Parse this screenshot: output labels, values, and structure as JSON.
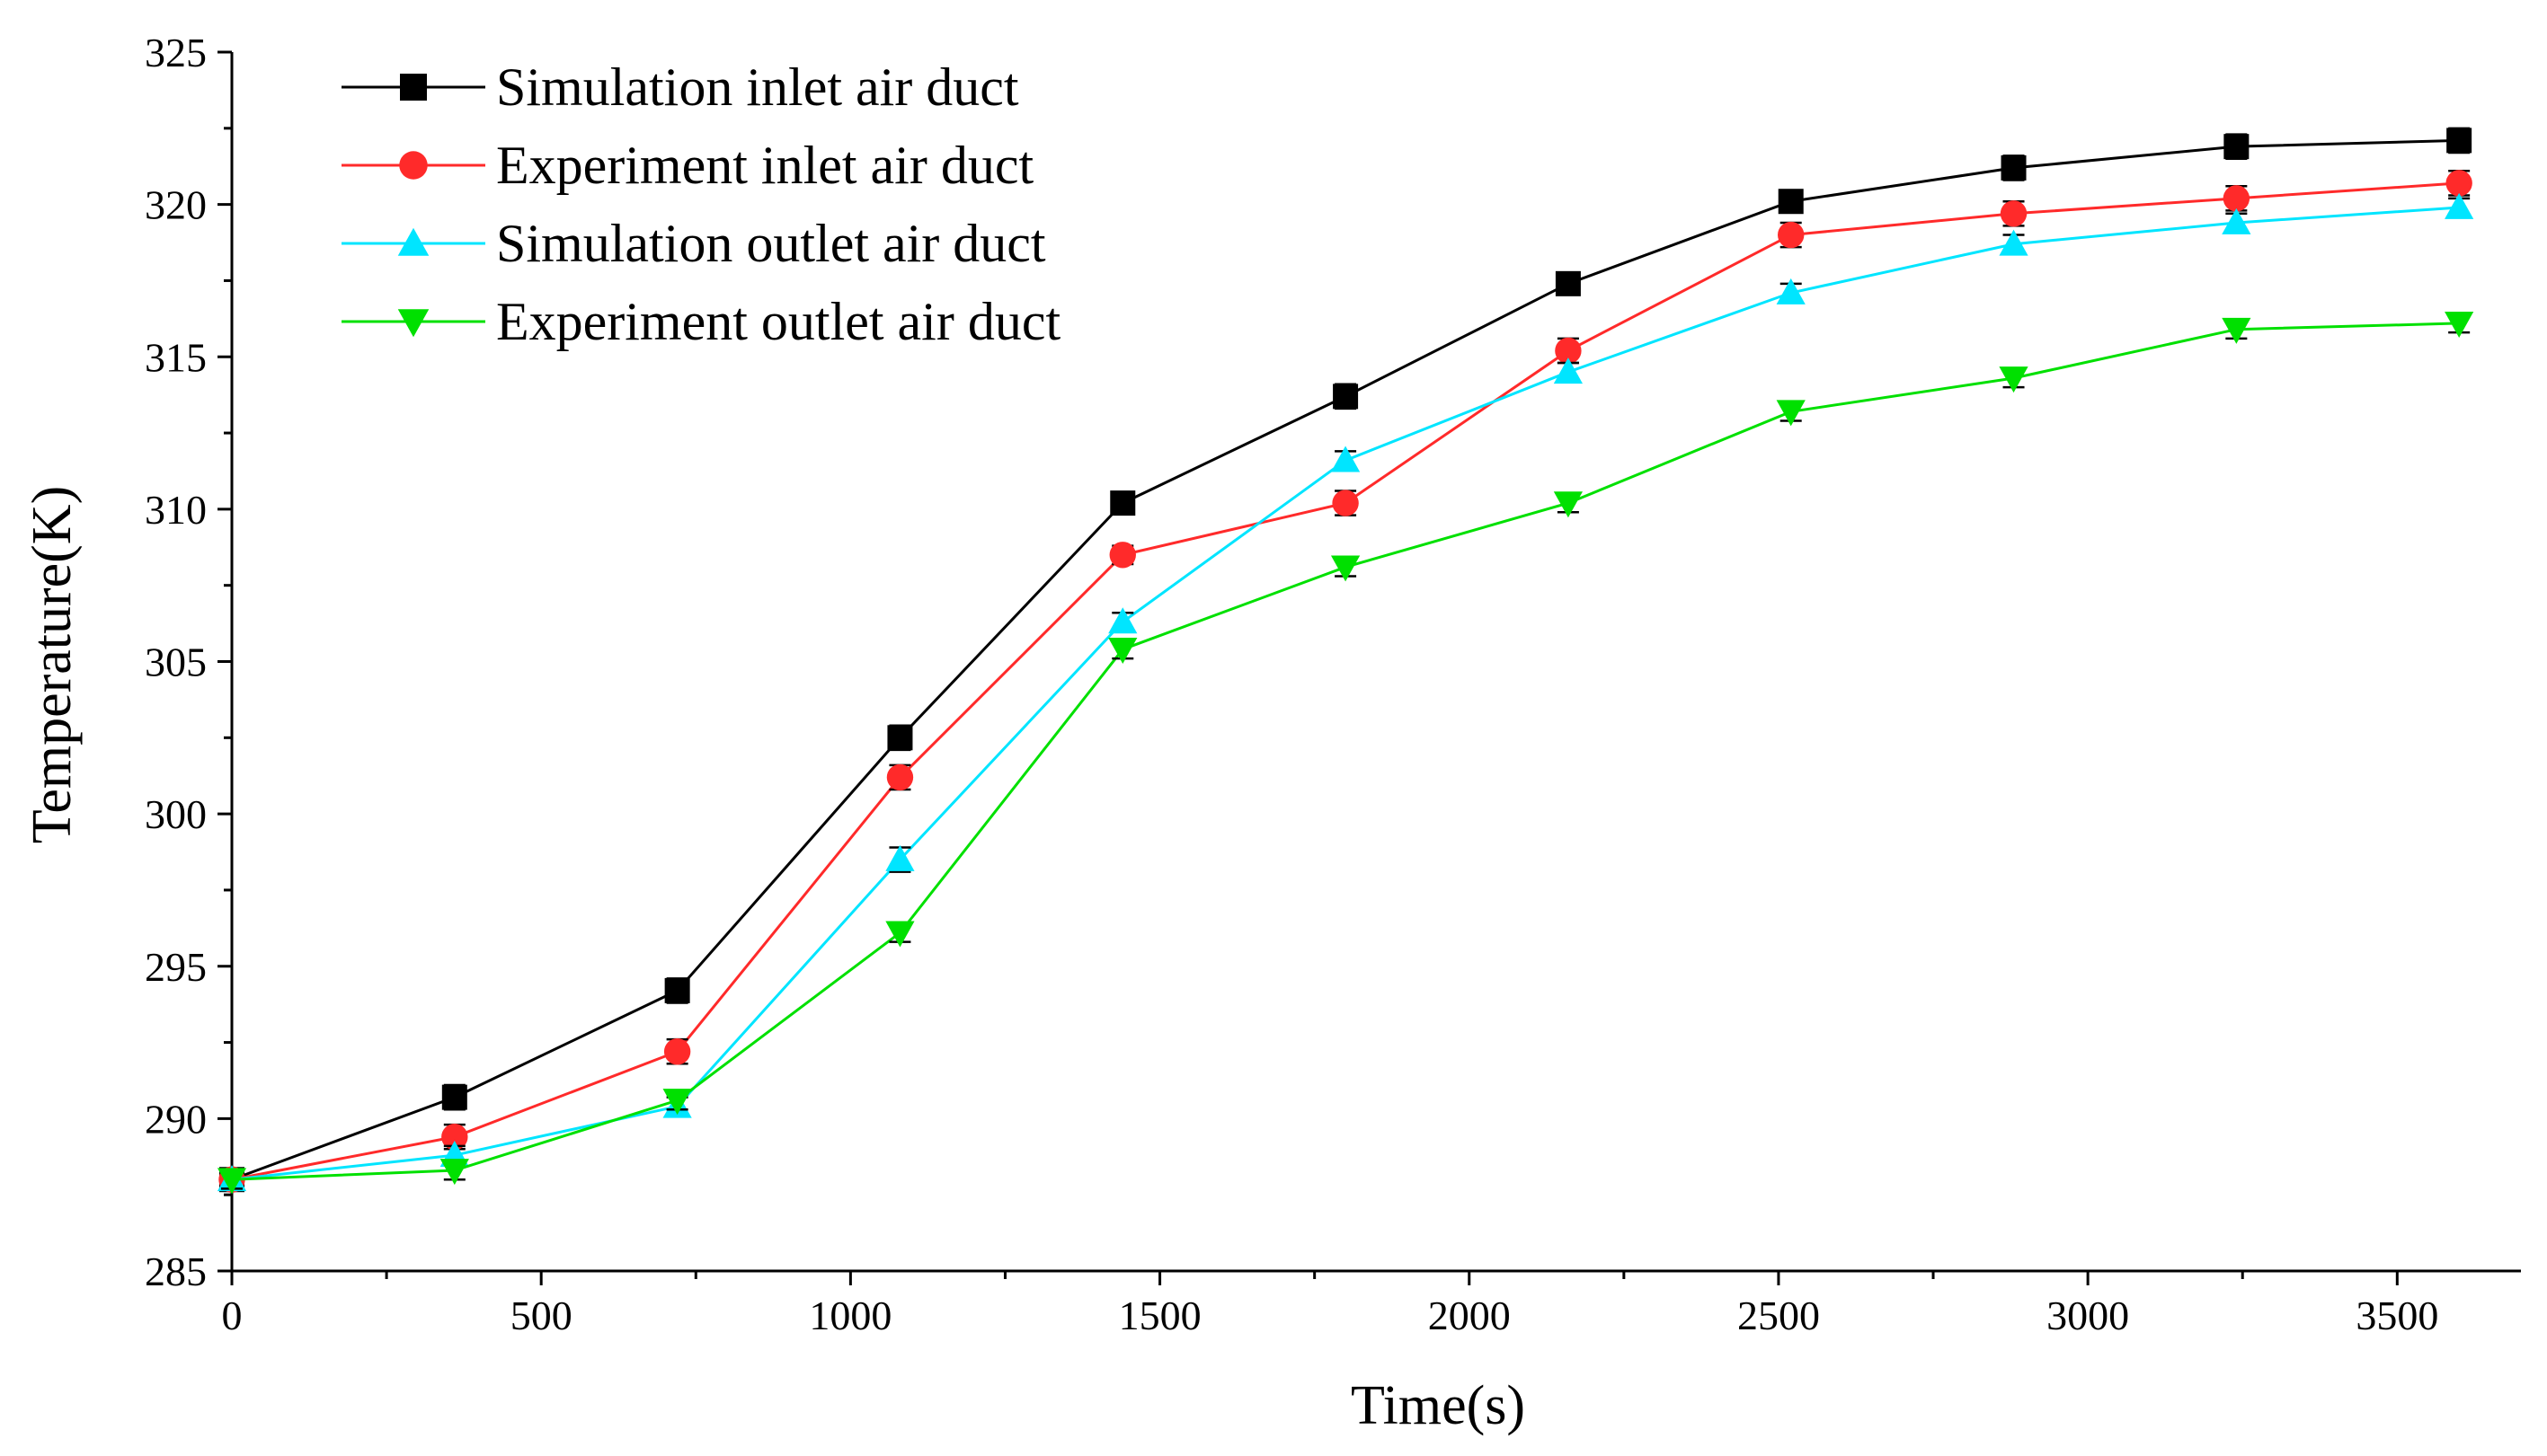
{
  "chart_data": {
    "type": "line",
    "title": "",
    "xlabel": "Time(s)",
    "ylabel": "Temperature(K)",
    "xlim": [
      0,
      3700
    ],
    "ylim": [
      285,
      325
    ],
    "x_ticks": [
      0,
      500,
      1000,
      1500,
      2000,
      2500,
      3000,
      3500
    ],
    "y_ticks": [
      285,
      290,
      295,
      300,
      305,
      310,
      315,
      320,
      325
    ],
    "x_tick_labels": [
      "0",
      "500",
      "1000",
      "1500",
      "2000",
      "2500",
      "3000",
      "3500"
    ],
    "y_tick_labels": [
      "285",
      "290",
      "295",
      "300",
      "305",
      "310",
      "315",
      "320",
      "325"
    ],
    "legend_position": "top-left",
    "x": [
      0,
      360,
      720,
      1080,
      1440,
      1800,
      2160,
      2520,
      2880,
      3240,
      3600
    ],
    "series": [
      {
        "name": "Simulation inlet air duct",
        "color": "#000000",
        "marker": "square",
        "values": [
          288.0,
          290.7,
          294.2,
          302.5,
          310.2,
          313.7,
          317.4,
          320.1,
          321.2,
          321.9,
          322.1
        ],
        "errors": [
          0.3,
          0.4,
          0.4,
          0.4,
          0.3,
          0.4,
          0.3,
          0.3,
          0.4,
          0.4,
          0.4
        ]
      },
      {
        "name": "Experiment inlet air duct",
        "color": "#ff2a2a",
        "marker": "circle",
        "values": [
          288.0,
          289.4,
          292.2,
          301.2,
          308.5,
          310.2,
          315.2,
          319.0,
          319.7,
          320.2,
          320.7
        ],
        "errors": [
          0.3,
          0.4,
          0.4,
          0.4,
          0.3,
          0.4,
          0.4,
          0.4,
          0.4,
          0.4,
          0.4
        ]
      },
      {
        "name": "Simulation outlet air duct",
        "color": "#00e5ff",
        "marker": "triangle-up",
        "values": [
          288.0,
          288.8,
          290.4,
          298.5,
          306.3,
          311.6,
          314.5,
          317.1,
          318.7,
          319.4,
          319.9
        ],
        "errors": [
          0.3,
          0.3,
          0.3,
          0.4,
          0.3,
          0.3,
          0.3,
          0.3,
          0.3,
          0.3,
          0.3
        ]
      },
      {
        "name": "Experiment outlet air duct",
        "color": "#00e000",
        "marker": "triangle-down",
        "values": [
          288.0,
          288.3,
          290.6,
          296.1,
          305.4,
          308.1,
          310.2,
          313.2,
          314.3,
          315.9,
          316.1
        ],
        "errors": [
          0.3,
          0.3,
          0.3,
          0.3,
          0.3,
          0.3,
          0.3,
          0.3,
          0.3,
          0.3,
          0.3
        ]
      }
    ]
  }
}
